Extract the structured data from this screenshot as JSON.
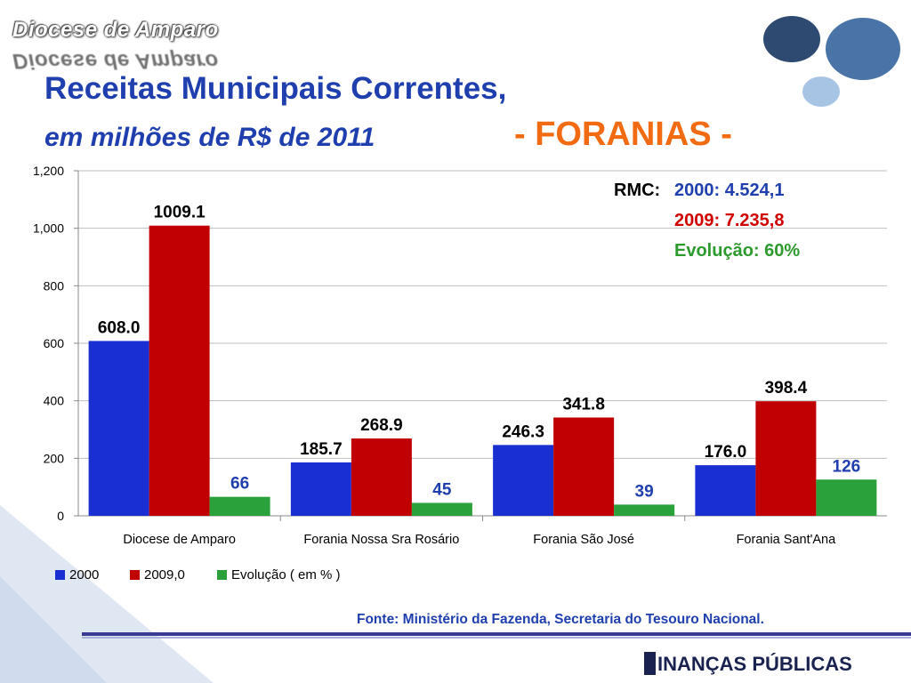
{
  "header": {
    "brand": "Diocese de Amparo",
    "title_line1": "Receitas Municipais Correntes,",
    "title_line2": "em milhões de R$ de 2011",
    "title_suffix": "- FORANIAS -"
  },
  "rmc": {
    "label": "RMC:",
    "line_2000": "2000: 4.524,1",
    "line_2009": "2009: 7.235,8",
    "line_evolucao": "Evolução: 60%"
  },
  "source_text": "Fonte: Ministério da Fazenda, Secretaria do Tesouro Nacional.",
  "footer": {
    "logo_text": "INANÇAS PÚBLICAS"
  },
  "colors": {
    "series_2000": "#1a2fd1",
    "series_2009": "#c00000",
    "series_evolucao": "#2aa13a",
    "title_blue": "#1f3fae",
    "title_orange": "#f26b12"
  },
  "chart_data": {
    "type": "bar",
    "categories": [
      "Diocese de Amparo",
      "Forania Nossa Sra Rosário",
      "Forania São José",
      "Forania Sant'Ana"
    ],
    "series": [
      {
        "name": "2000",
        "values": [
          608.0,
          185.7,
          246.3,
          176.0
        ],
        "labels": [
          "608.0",
          "185.7",
          "246.3",
          "176.0"
        ],
        "color": "#1a2fd1"
      },
      {
        "name": "2009,0",
        "values": [
          1009.1,
          268.9,
          341.8,
          398.4
        ],
        "labels": [
          "1009.1",
          "268.9",
          "341.8",
          "398.4"
        ],
        "color": "#c00000"
      },
      {
        "name": "Evolução ( em % )",
        "values": [
          66,
          45,
          39,
          126
        ],
        "labels": [
          "66",
          "45",
          "39",
          "126"
        ],
        "color": "#2aa13a"
      }
    ],
    "ylim": [
      0,
      1200
    ],
    "yticks": [
      0,
      200,
      400,
      600,
      800,
      1000,
      1200
    ],
    "ytick_labels": [
      "0",
      "200",
      "400",
      "600",
      "800",
      "1,000",
      "1,200"
    ],
    "grid": true,
    "legend_position": "bottom-left"
  }
}
